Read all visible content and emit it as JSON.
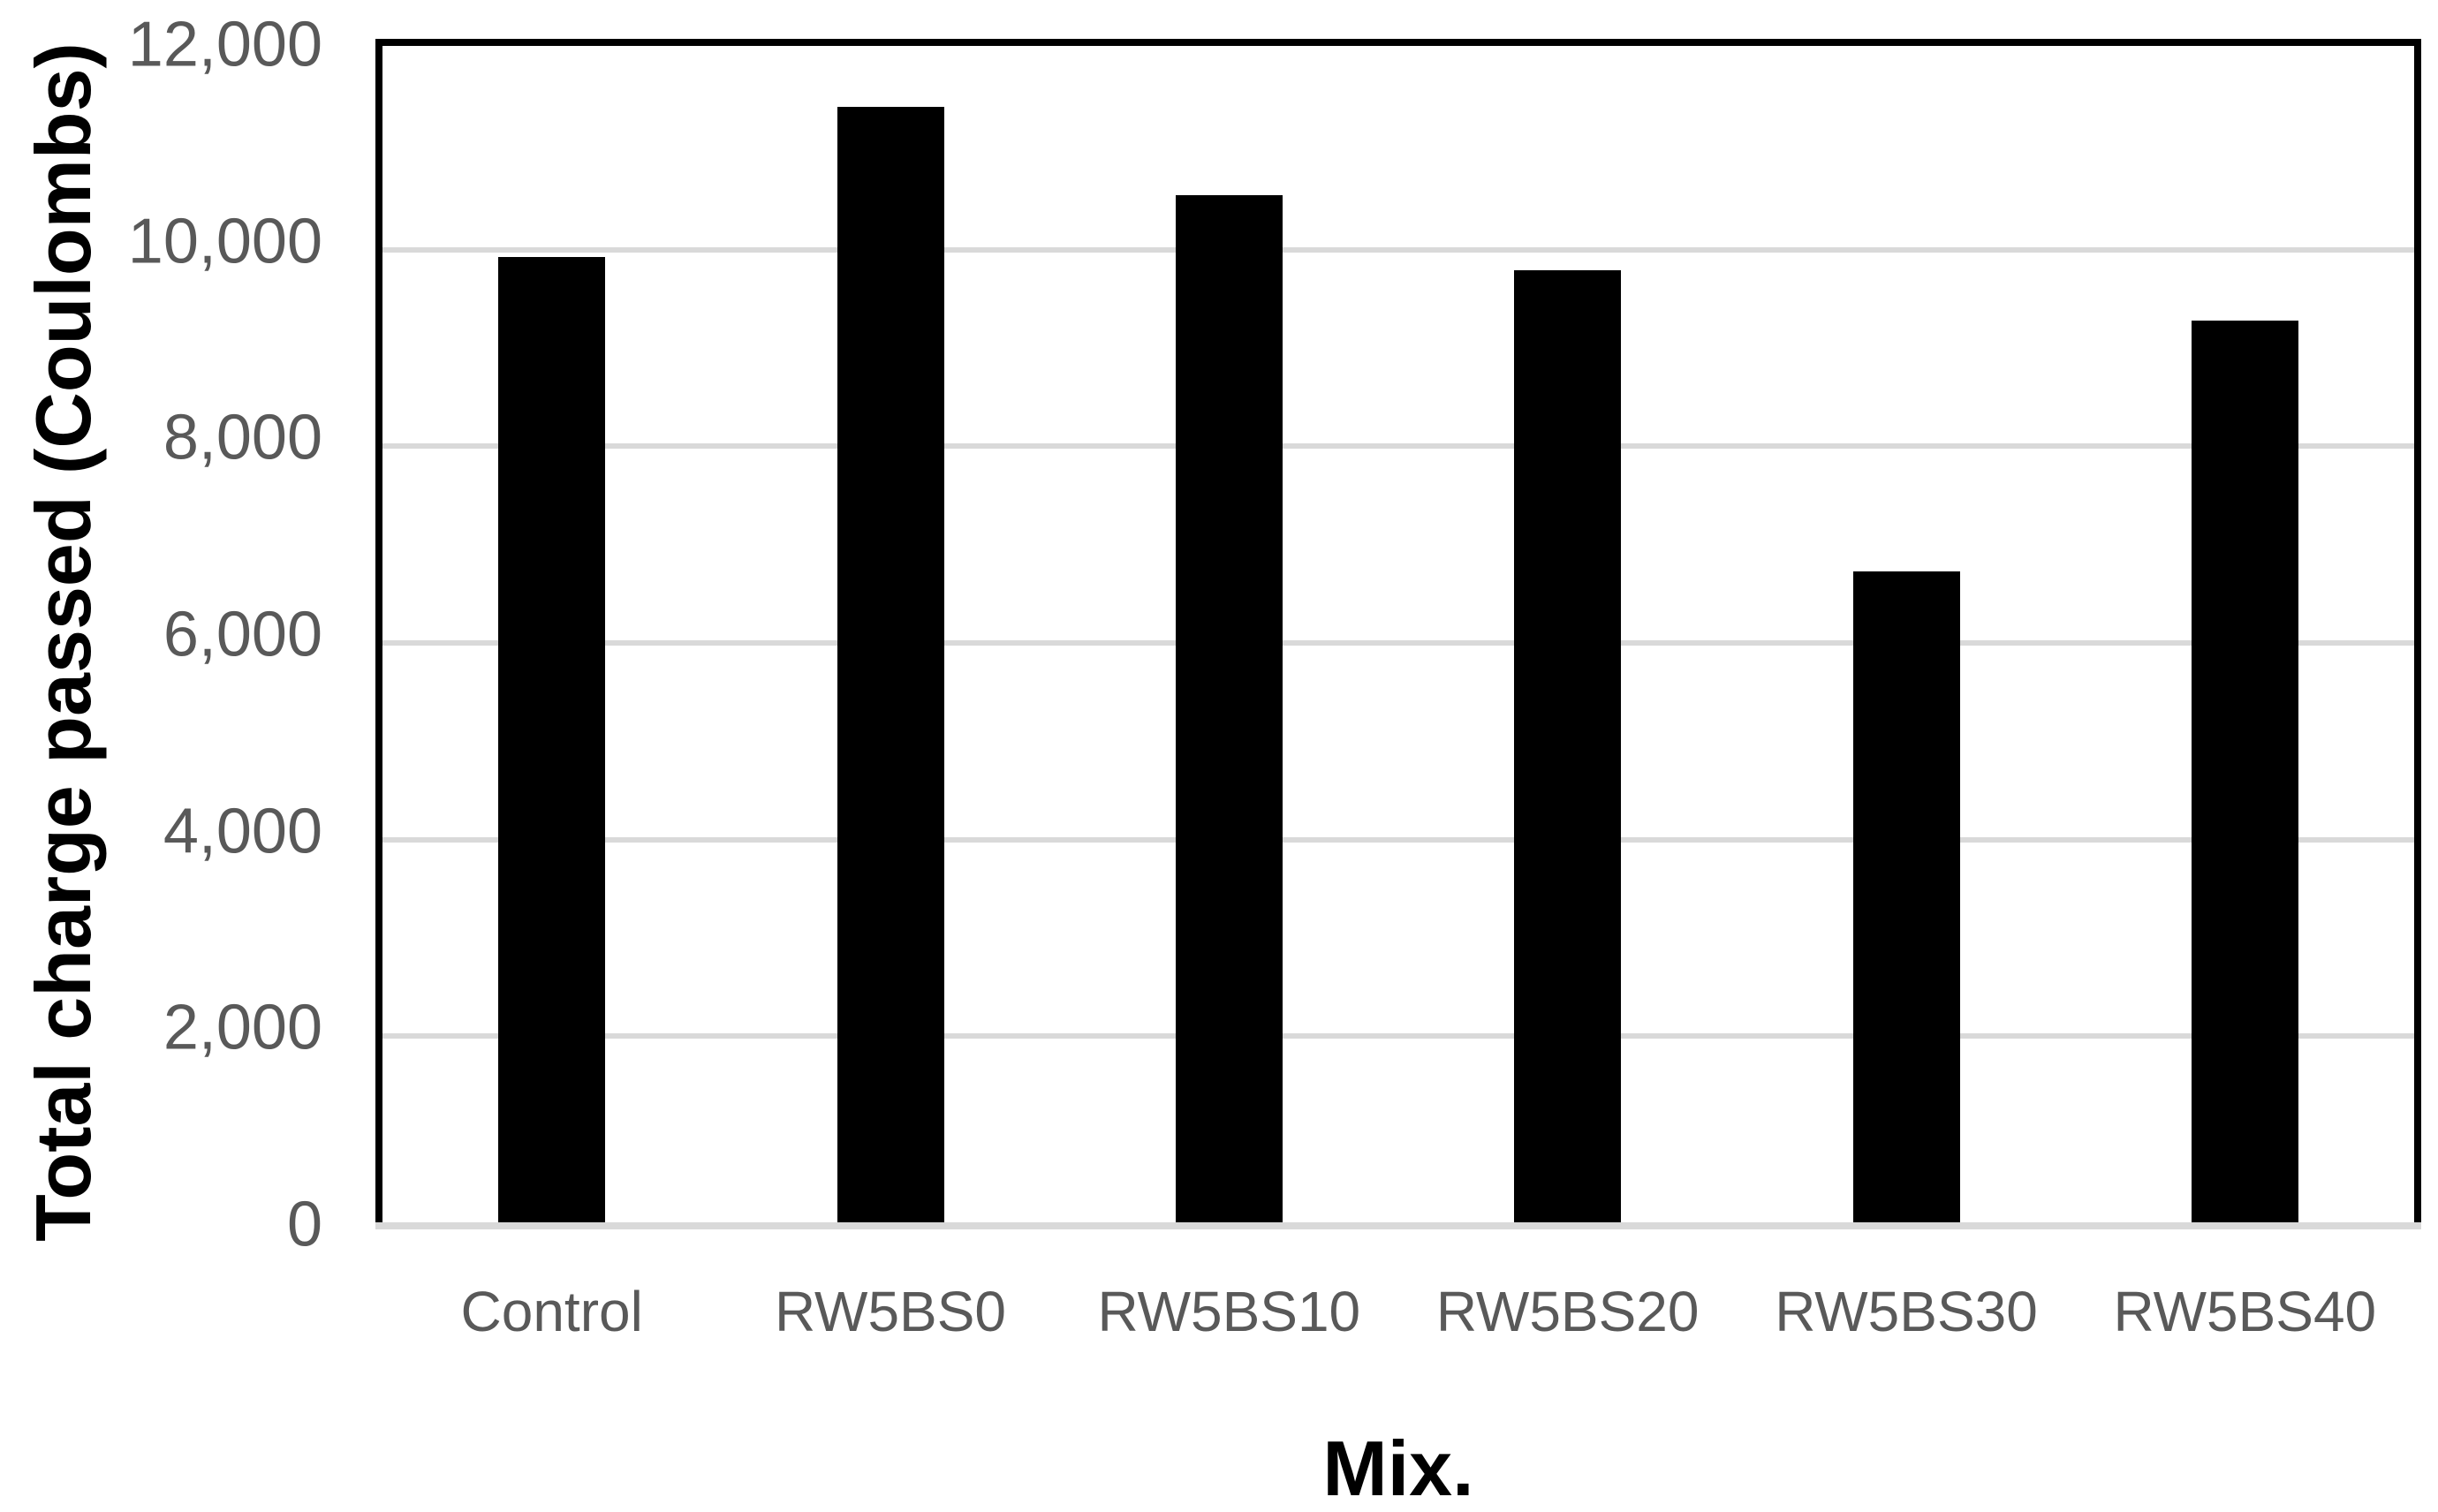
{
  "chart_data": {
    "type": "bar",
    "title": "",
    "categories": [
      "Control",
      "RW5BS0",
      "RW5BS10",
      "RW5BS20",
      "RW5BS30",
      "RW5BS40"
    ],
    "values": [
      9850,
      11380,
      10480,
      9720,
      6660,
      9210
    ],
    "series_name": "Total charge passed",
    "xlabel": "Mix.",
    "ylabel": "Total charge passed (Coulombs)",
    "ylim": [
      0,
      12000
    ],
    "ytick_interval": 2000,
    "ytick_labels": [
      "0",
      "2,000",
      "4,000",
      "6,000",
      "8,000",
      "10,000",
      "12,000"
    ],
    "grid": "horizontal gridlines on",
    "legend_position": "none",
    "colors": {
      "bar": "#000000",
      "gridline": "#D9D9D9",
      "x_axis_line": "#D9D9D9",
      "plot_border": "#000000",
      "tick_label": "#595959",
      "axis_title": "#000000",
      "background": "#FFFFFF"
    }
  }
}
